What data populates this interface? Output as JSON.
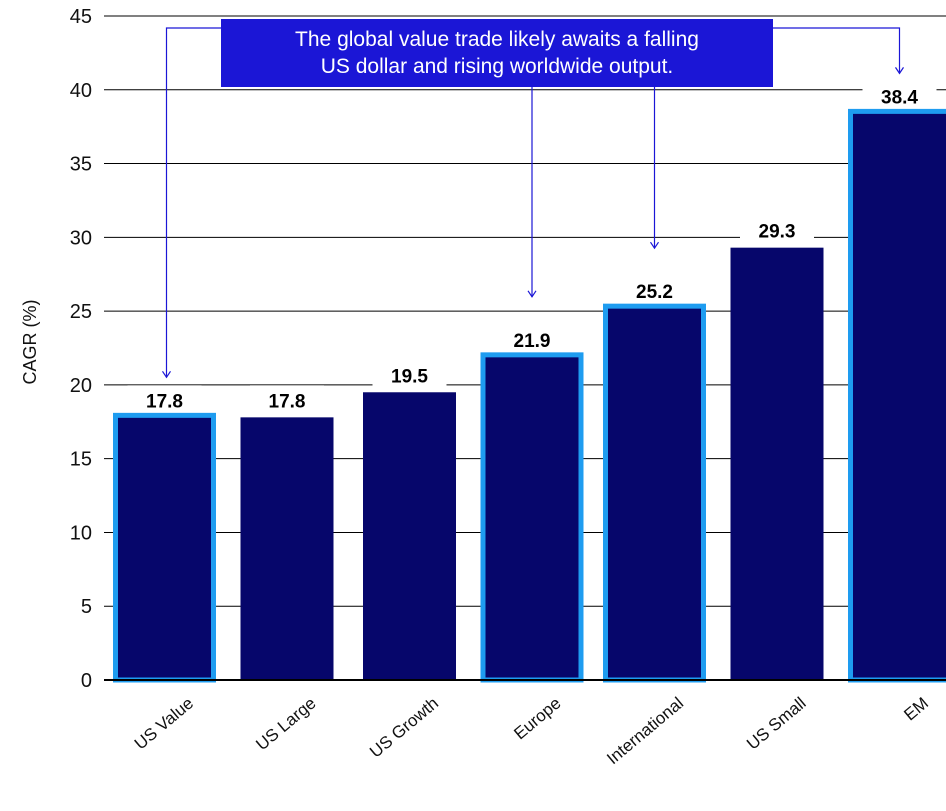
{
  "chart_data": {
    "type": "bar",
    "categories": [
      "US Value",
      "US Large",
      "US Growth",
      "Europe",
      "International",
      "US Small",
      "EM"
    ],
    "values": [
      17.8,
      17.8,
      19.5,
      21.9,
      25.2,
      29.3,
      38.4
    ],
    "value_labels": [
      "17.8",
      "17.8",
      "19.5",
      "21.9",
      "25.2",
      "29.3",
      "38.4"
    ],
    "highlighted": [
      true,
      false,
      false,
      true,
      true,
      false,
      true
    ],
    "ylabel": "CAGR (%)",
    "ylim": [
      0,
      45
    ],
    "yticks": [
      0,
      5,
      10,
      15,
      20,
      25,
      30,
      35,
      40,
      45
    ],
    "grid": true,
    "annotation": {
      "lines": [
        "The global value trade likely awaits a falling",
        "US dollar and rising worldwide output."
      ],
      "points_to": [
        "US Value",
        "Europe",
        "International",
        "EM"
      ]
    },
    "colors": {
      "bar": "#06066b",
      "highlight_outline": "#1e9cf0",
      "annotation_bg": "#1b16d6",
      "annotation_line": "#1b16d6"
    }
  }
}
